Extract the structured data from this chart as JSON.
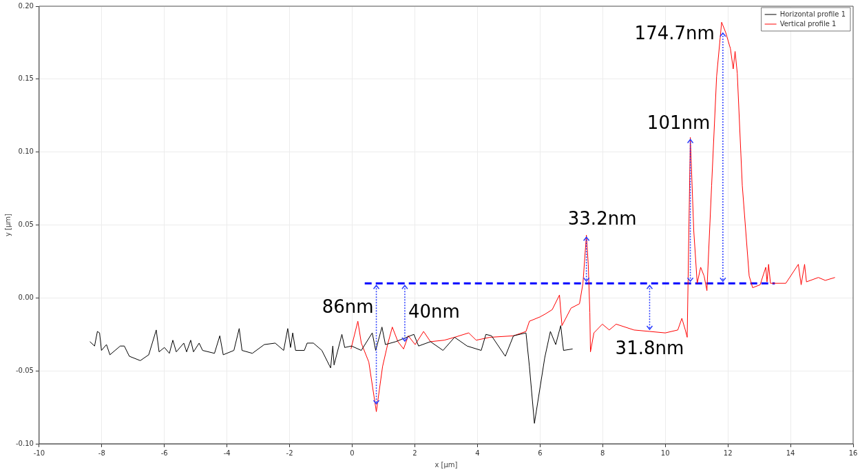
{
  "chart_data": {
    "type": "line",
    "xlabel": "x [µm]",
    "ylabel": "y [µm]",
    "xlim": [
      -10,
      16
    ],
    "xticks": [
      -10,
      -8,
      -6,
      -4,
      -2,
      0,
      2,
      4,
      6,
      8,
      10,
      12,
      14,
      16
    ],
    "ylim": [
      -0.1,
      0.2
    ],
    "yticks": [
      {
        "value": -0.1,
        "label": "-0.10"
      },
      {
        "value": -0.05,
        "label": "-0.05"
      },
      {
        "value": 0,
        "label": "0.00"
      },
      {
        "value": 0.05,
        "label": "0.05"
      },
      {
        "value": 0.1,
        "label": "0.10"
      },
      {
        "value": 0.15,
        "label": "0.15"
      },
      {
        "value": 0.2,
        "label": "0.20"
      }
    ],
    "grid": true,
    "legend": "top right",
    "marker": "none",
    "series": [
      {
        "name": "Horizontal profile 1",
        "color": "#000000",
        "x": [
          -8.38,
          -8.23,
          -8.14,
          -8.07,
          -8.01,
          -7.85,
          -7.74,
          -7.41,
          -7.28,
          -7.12,
          -6.77,
          -6.5,
          -6.26,
          -6.17,
          -6,
          -5.84,
          -5.73,
          -5.62,
          -5.38,
          -5.29,
          -5.16,
          -5.07,
          -4.89,
          -4.78,
          -4.4,
          -4.23,
          -4.12,
          -3.78,
          -3.61,
          -3.52,
          -3.19,
          -2.81,
          -2.46,
          -2.19,
          -2.06,
          -1.97,
          -1.9,
          -1.81,
          -1.53,
          -1.44,
          -1.24,
          -0.97,
          -0.69,
          -0.62,
          -0.58,
          -0.33,
          -0.24,
          -0.02,
          0.29,
          0.64,
          0.75,
          0.95,
          1.06,
          1.39,
          1.97,
          2.12,
          2.5,
          2.9,
          3.27,
          3.67,
          4.12,
          4.27,
          4.45,
          4.89,
          5.15,
          5.55,
          5.66,
          5.82,
          6.15,
          6.33,
          6.5,
          6.66,
          6.75,
          7.04
        ],
        "values": [
          -0.03,
          -0.033,
          -0.023,
          -0.024,
          -0.036,
          -0.032,
          -0.039,
          -0.033,
          -0.033,
          -0.04,
          -0.043,
          -0.039,
          -0.022,
          -0.037,
          -0.034,
          -0.038,
          -0.029,
          -0.037,
          -0.031,
          -0.037,
          -0.029,
          -0.037,
          -0.031,
          -0.036,
          -0.038,
          -0.026,
          -0.039,
          -0.036,
          -0.021,
          -0.036,
          -0.038,
          -0.032,
          -0.031,
          -0.036,
          -0.021,
          -0.034,
          -0.024,
          -0.036,
          -0.036,
          -0.031,
          -0.031,
          -0.036,
          -0.048,
          -0.033,
          -0.046,
          -0.025,
          -0.034,
          -0.033,
          -0.036,
          -0.024,
          -0.036,
          -0.02,
          -0.032,
          -0.03,
          -0.025,
          -0.033,
          -0.03,
          -0.036,
          -0.027,
          -0.033,
          -0.036,
          -0.025,
          -0.026,
          -0.04,
          -0.026,
          -0.024,
          -0.047,
          -0.086,
          -0.041,
          -0.023,
          -0.032,
          -0.019,
          -0.036,
          -0.035
        ]
      },
      {
        "name": "Vertical profile 1",
        "color": "#ff0000",
        "x": [
          -0.04,
          0.18,
          0.29,
          0.53,
          0.77,
          0.97,
          1.13,
          1.28,
          1.46,
          1.64,
          1.79,
          2.01,
          2.28,
          2.5,
          2.94,
          3.27,
          3.72,
          3.96,
          4.4,
          5.15,
          5.55,
          5.66,
          6,
          6.17,
          6.39,
          6.62,
          6.7,
          6.99,
          7.26,
          7.37,
          7.48,
          7.54,
          7.59,
          7.61,
          7.72,
          7.99,
          8.21,
          8.43,
          9,
          9.5,
          10,
          10.4,
          10.53,
          10.64,
          10.7,
          10.8,
          10.91,
          11.02,
          11.13,
          11.24,
          11.33,
          11.48,
          11.64,
          11.8,
          11.93,
          12.08,
          12.17,
          12.23,
          12.3,
          12.46,
          12.68,
          12.79,
          13.03,
          13.21,
          13.25,
          13.3,
          13.36,
          13.85,
          14.25,
          14.34,
          14.45,
          14.51,
          14.89,
          15.11,
          15.42
        ],
        "values": [
          -0.035,
          -0.016,
          -0.031,
          -0.044,
          -0.078,
          -0.047,
          -0.032,
          -0.02,
          -0.03,
          -0.035,
          -0.026,
          -0.032,
          -0.023,
          -0.03,
          -0.029,
          -0.027,
          -0.024,
          -0.029,
          -0.027,
          -0.026,
          -0.023,
          -0.016,
          -0.013,
          -0.011,
          -0.008,
          0.002,
          -0.019,
          -0.007,
          -0.004,
          0.01,
          0.043,
          0.023,
          -0.01,
          -0.037,
          -0.024,
          -0.018,
          -0.022,
          -0.018,
          -0.022,
          -0.023,
          -0.024,
          -0.022,
          -0.014,
          -0.022,
          -0.027,
          0.11,
          0.046,
          0.01,
          0.021,
          0.015,
          0.005,
          0.077,
          0.152,
          0.189,
          0.182,
          0.171,
          0.157,
          0.169,
          0.154,
          0.077,
          0.015,
          0.007,
          0.009,
          0.021,
          0.011,
          0.023,
          0.01,
          0.01,
          0.023,
          0.009,
          0.023,
          0.011,
          0.014,
          0.012,
          0.014
        ]
      },
      {
        "type": "line",
        "line_style": "dashed",
        "color": "#0000ff",
        "x": [
          0.4,
          13.5
        ],
        "values": [
          0.01,
          0.01
        ]
      }
    ],
    "annotations": [
      {
        "text": "174.7nm",
        "x": 11.84,
        "y": 0.183
      },
      {
        "text": "101nm",
        "x": 10.8,
        "y": 0.11
      },
      {
        "text": "33.2nm",
        "x": 7.48,
        "y": 0.043
      },
      {
        "text": "86nm",
        "x": 0.77,
        "y": -0.074
      },
      {
        "text": "40nm",
        "x": 1.68,
        "y": -0.031
      },
      {
        "text": "31.8nm",
        "x": 9.5,
        "y": -0.023
      }
    ]
  }
}
